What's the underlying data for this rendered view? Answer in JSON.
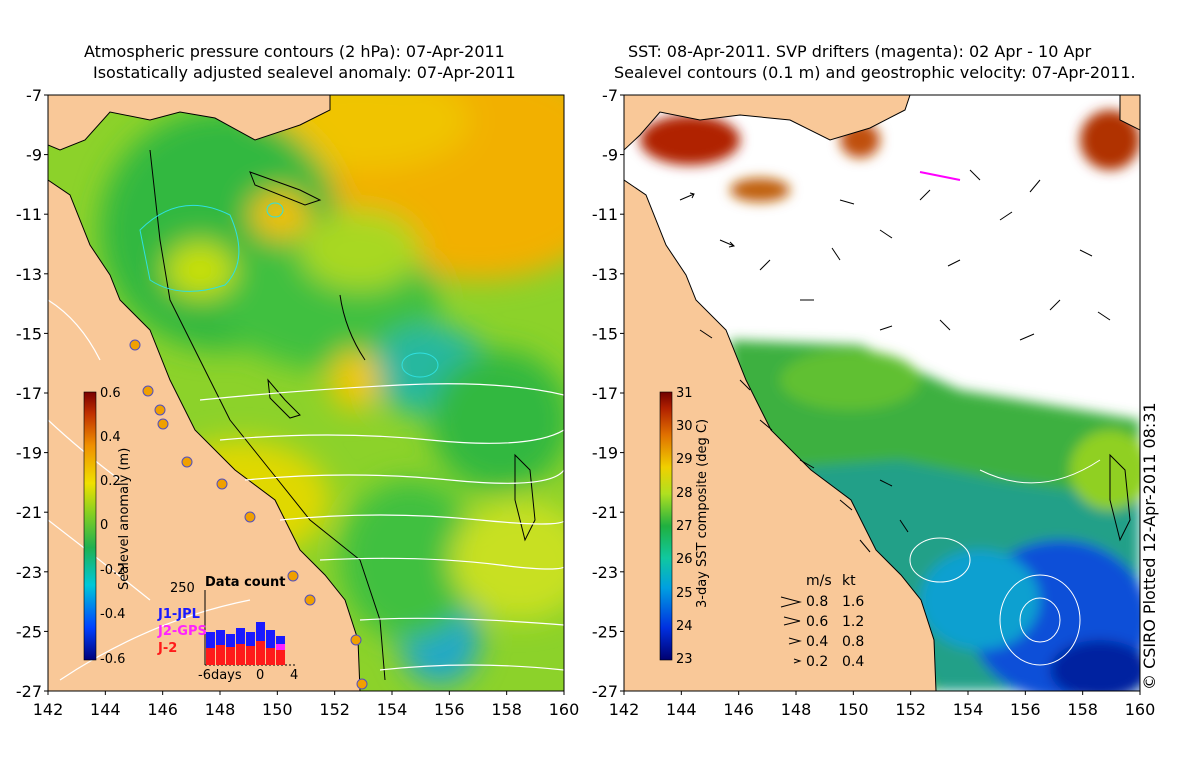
{
  "left_panel": {
    "title_line1": "Atmospheric pressure contours (2 hPa): 07-Apr-2011",
    "title_line2": "Isostatically adjusted sealevel anomaly: 07-Apr-2011",
    "y_ticks": [
      "-7",
      "-9",
      "-11",
      "-13",
      "-15",
      "-17",
      "-19",
      "-21",
      "-23",
      "-25",
      "-27"
    ],
    "x_ticks": [
      "142",
      "144",
      "146",
      "148",
      "150",
      "152",
      "154",
      "156",
      "158",
      "160"
    ],
    "colorbar": {
      "label": "Sealevel anomaly (m)",
      "ticks": [
        "0.6",
        "0.4",
        "0.2",
        "0",
        "-0.2",
        "-0.4",
        "-0.6"
      ],
      "range": [
        -0.6,
        0.6
      ]
    },
    "data_count": {
      "title": "Data count",
      "max_label": "250",
      "legend": [
        "J1-JPL",
        "J2-GPS",
        "J-2"
      ],
      "axis_labels": [
        "-6days",
        "0",
        "4"
      ],
      "colors": {
        "J1-JPL": "#1a1aff",
        "J2-GPS": "#ff22ff",
        "J-2": "#ff1a1a"
      }
    }
  },
  "right_panel": {
    "title_line1": "SST: 08-Apr-2011. SVP drifters (magenta): 02 Apr - 10 Apr",
    "title_line2": "Sealevel contours (0.1 m) and geostrophic velocity: 07-Apr-2011.",
    "y_ticks": [
      "-7",
      "-9",
      "-11",
      "-13",
      "-15",
      "-17",
      "-19",
      "-21",
      "-23",
      "-25",
      "-27"
    ],
    "x_ticks": [
      "142",
      "144",
      "146",
      "148",
      "150",
      "152",
      "154",
      "156",
      "158",
      "160"
    ],
    "colorbar": {
      "label": "3-day SST composite (deg C)",
      "ticks": [
        "31",
        "30",
        "29",
        "28",
        "27",
        "26",
        "25",
        "24",
        "23"
      ],
      "range": [
        23,
        31
      ]
    },
    "velocity_legend": {
      "header": [
        "m/s",
        "kt"
      ],
      "rows": [
        [
          "0.8",
          "1.6"
        ],
        [
          "0.6",
          "1.2"
        ],
        [
          "0.4",
          "0.8"
        ],
        [
          "0.2",
          "0.4"
        ]
      ]
    }
  },
  "credit": "© CSIRO Plotted 12-Apr-2011 08:31",
  "colors": {
    "land": "#f9c898",
    "coast": "#000000",
    "contour": "#ffffff",
    "drifter": "#ff00ff"
  }
}
